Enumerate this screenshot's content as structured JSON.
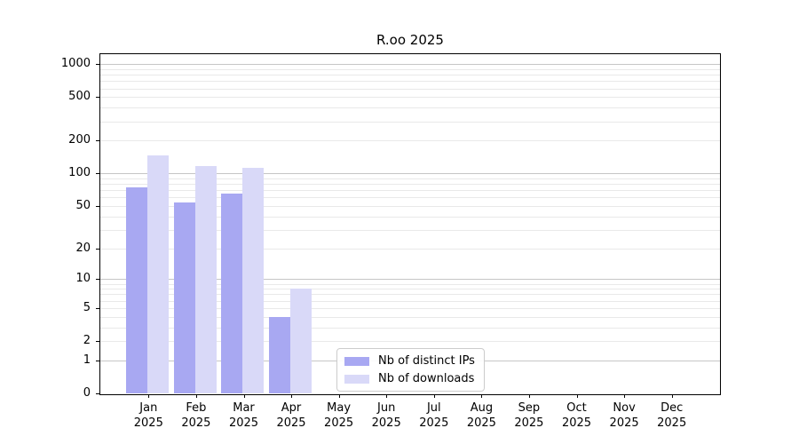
{
  "chart_data": {
    "type": "bar",
    "title": "R.oo 2025",
    "months": [
      "Jan",
      "Feb",
      "Mar",
      "Apr",
      "May",
      "Jun",
      "Jul",
      "Aug",
      "Sep",
      "Oct",
      "Nov",
      "Dec"
    ],
    "year": "2025",
    "series": [
      {
        "name": "Nb of distinct IPs",
        "color": "#a8a8f2",
        "values": [
          75,
          54,
          65,
          4,
          0,
          0,
          0,
          0,
          0,
          0,
          0,
          0
        ]
      },
      {
        "name": "Nb of downloads",
        "color": "#d9d9f8",
        "values": [
          147,
          118,
          113,
          8,
          0,
          0,
          0,
          0,
          0,
          0,
          0,
          0
        ]
      }
    ],
    "y_ticks": [
      0,
      1,
      2,
      5,
      10,
      20,
      50,
      100,
      200,
      500,
      1000
    ],
    "scale": "log1p",
    "ylim": [
      0,
      1230
    ],
    "grid": true,
    "legend_position": "inside-lower-center-left",
    "colors": {
      "axis": "#000000",
      "grid_major": "#c6c6c6",
      "grid_minor": "#e9e9e9"
    }
  }
}
